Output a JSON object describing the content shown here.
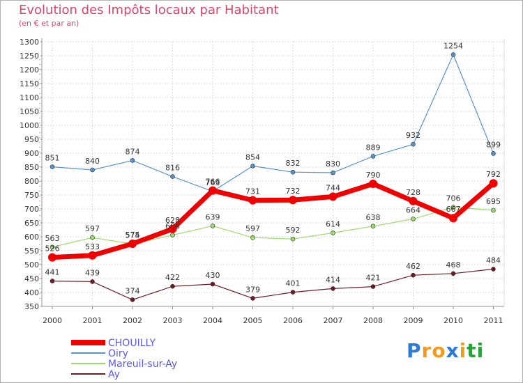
{
  "chart_data": {
    "type": "line",
    "title": "Evolution des Impôts locaux par Habitant",
    "subtitle": "(en € et par an)",
    "categories": [
      "2000",
      "2001",
      "2002",
      "2003",
      "2004",
      "2005",
      "2006",
      "2007",
      "2008",
      "2009",
      "2010",
      "2011"
    ],
    "ylim": [
      350,
      1300
    ],
    "yticks": [
      350,
      400,
      450,
      500,
      550,
      600,
      650,
      700,
      750,
      800,
      850,
      900,
      950,
      1000,
      1050,
      1100,
      1150,
      1200,
      1250,
      1300
    ],
    "grid": true,
    "series": [
      {
        "name": "CHOUILLY",
        "color": "#ee0000",
        "values": [
          526,
          533,
          575,
          628,
          766,
          731,
          732,
          744,
          790,
          728,
          667,
          792
        ]
      },
      {
        "name": "Oiry",
        "color": "#5894c8",
        "values": [
          851,
          840,
          874,
          816,
          763,
          854,
          832,
          830,
          889,
          932,
          1254,
          899
        ]
      },
      {
        "name": "Mareuil-sur-Ay",
        "color": "#9adb6c",
        "values": [
          563,
          597,
          574,
          606,
          639,
          597,
          592,
          614,
          638,
          664,
          706,
          695
        ]
      },
      {
        "name": "Ay",
        "color": "#6d1c24",
        "values": [
          441,
          439,
          374,
          422,
          430,
          379,
          401,
          414,
          421,
          462,
          468,
          484
        ]
      }
    ]
  },
  "logo": {
    "text": "Proxiti"
  }
}
